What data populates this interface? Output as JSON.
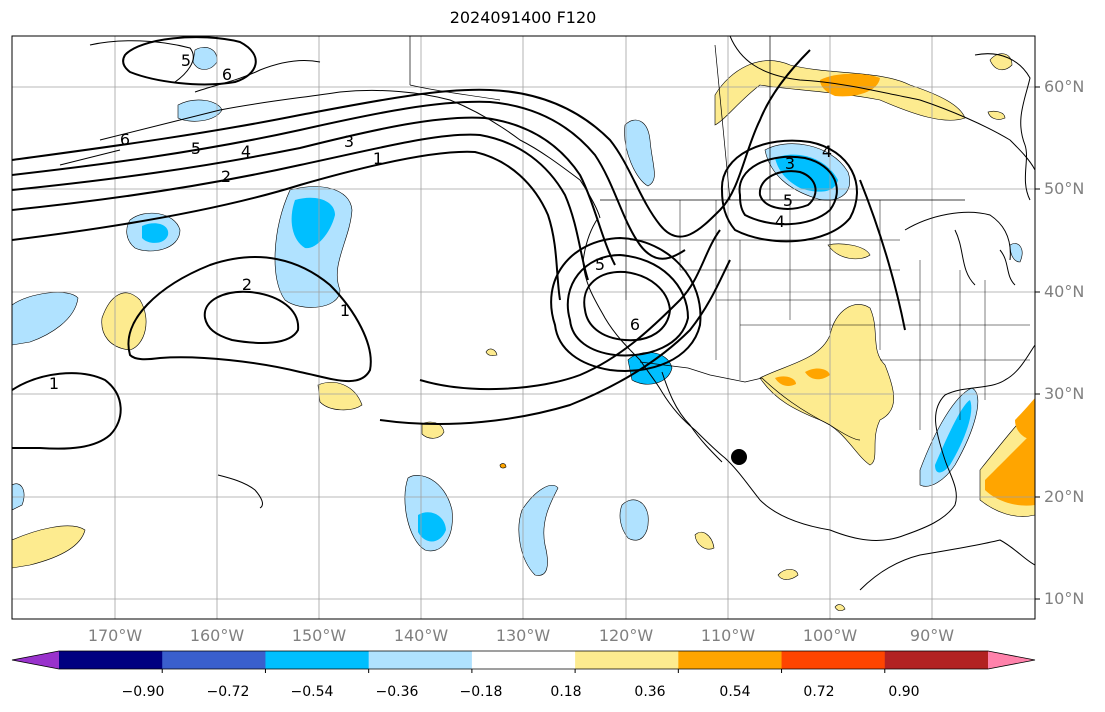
{
  "title": "2024091400 F120",
  "map": {
    "projection": "PlateCarree",
    "lon_range": [
      -180,
      -80
    ],
    "lat_range": [
      7,
      64
    ],
    "contour_color": "#000000",
    "gridline_color": "#a0a0a0",
    "storm_marker": {
      "lon": -109,
      "lat": 23.8
    }
  },
  "lat_labels": [
    "60°N",
    "50°N",
    "40°N",
    "30°N",
    "20°N",
    "10°N"
  ],
  "lon_labels": [
    "170°W",
    "160°W",
    "150°W",
    "140°W",
    "130°W",
    "120°W",
    "110°W",
    "100°W",
    "90°W"
  ],
  "contour_labels": [
    "5",
    "6",
    "6",
    "5",
    "4",
    "3",
    "1",
    "2",
    "2",
    "1",
    "1",
    "5",
    "6",
    "3",
    "4",
    "4",
    "5"
  ],
  "colorbar": {
    "colors": [
      "#9932cc",
      "#000080",
      "#3a5fcd",
      "#00bfff",
      "#b0e2ff",
      "#ffffff",
      "#fdeb8f",
      "#ffa500",
      "#ff4500",
      "#b22222",
      "#ff82ab"
    ],
    "tick_labels": [
      "−0.90",
      "−0.72",
      "−0.54",
      "−0.36",
      "−0.18",
      "0.18",
      "0.36",
      "0.54",
      "0.72",
      "0.90"
    ]
  }
}
